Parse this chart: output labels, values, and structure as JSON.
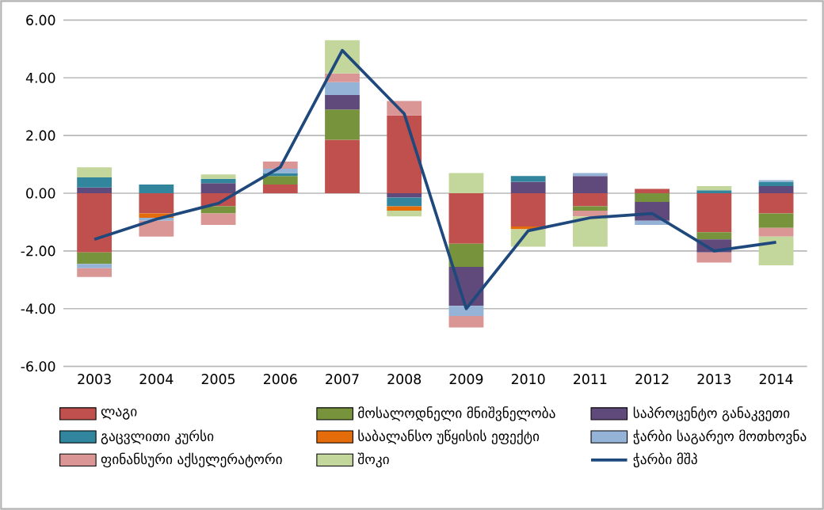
{
  "chart_data": {
    "type": "bar",
    "stacked": true,
    "grid": "y",
    "legend": "bottom",
    "categories": [
      "2003",
      "2004",
      "2005",
      "2006",
      "2007",
      "2008",
      "2009",
      "2010",
      "2011",
      "2012",
      "2013",
      "2014"
    ],
    "ylim": [
      -6,
      6
    ],
    "yticks": [
      {
        "value": -6,
        "label": "-6.00"
      },
      {
        "value": -4,
        "label": "-4.00"
      },
      {
        "value": -2,
        "label": "-2.00"
      },
      {
        "value": 0,
        "label": "0.00"
      },
      {
        "value": 2,
        "label": "2.00"
      },
      {
        "value": 4,
        "label": "4.00"
      },
      {
        "value": 6,
        "label": "6.00"
      }
    ],
    "series": [
      {
        "name": "ლაგი",
        "color": "#c0504d",
        "values": [
          -2.05,
          -0.7,
          -0.45,
          0.3,
          1.85,
          2.7,
          -1.75,
          -1.15,
          -0.45,
          0.15,
          -1.35,
          -0.7
        ]
      },
      {
        "name": "მოსალოდნელი მნიშვნელობა",
        "color": "#77933c",
        "values": [
          -0.4,
          null,
          -0.25,
          0.3,
          1.05,
          null,
          -0.8,
          null,
          -0.15,
          -0.3,
          -0.25,
          -0.5
        ]
      },
      {
        "name": "საპროცენტო განაკვეთი",
        "color": "#604a7b",
        "values": [
          0.2,
          null,
          0.35,
          null,
          0.5,
          -0.15,
          -1.35,
          0.4,
          0.6,
          -0.65,
          -0.45,
          0.25
        ]
      },
      {
        "name": "გაცვლითი კურსი",
        "color": "#31859c",
        "values": [
          0.35,
          0.3,
          0.15,
          0.1,
          null,
          -0.3,
          null,
          0.2,
          null,
          null,
          0.1,
          0.15
        ]
      },
      {
        "name": "საბალანსო უწყისის ეფექტი",
        "color": "#e46c0a",
        "values": [
          null,
          -0.15,
          null,
          null,
          null,
          -0.15,
          null,
          -0.1,
          null,
          null,
          null,
          null
        ]
      },
      {
        "name": "ჭარბი საგარეო მოთხოვნა",
        "color": "#95b3d7",
        "values": [
          -0.15,
          -0.1,
          null,
          0.15,
          0.45,
          null,
          -0.35,
          null,
          0.1,
          -0.15,
          null,
          0.05
        ]
      },
      {
        "name": "ფინანსური აქსელერატორი",
        "color": "#d99694",
        "values": [
          -0.3,
          -0.55,
          -0.4,
          0.25,
          0.3,
          0.5,
          -0.4,
          null,
          -0.2,
          null,
          -0.35,
          -0.3
        ]
      },
      {
        "name": "შოკი",
        "color": "#c3d69b",
        "values": [
          0.35,
          null,
          0.15,
          null,
          1.15,
          -0.2,
          0.7,
          -0.6,
          -1.05,
          null,
          0.15,
          -1.0
        ]
      },
      {
        "name": "ჭარბი მშპ",
        "color": "#1f497d",
        "type": "line",
        "values": [
          -1.6,
          -0.9,
          -0.35,
          0.9,
          4.95,
          2.75,
          -4.0,
          -1.3,
          -0.85,
          -0.7,
          -2.0,
          -1.7
        ]
      }
    ]
  }
}
